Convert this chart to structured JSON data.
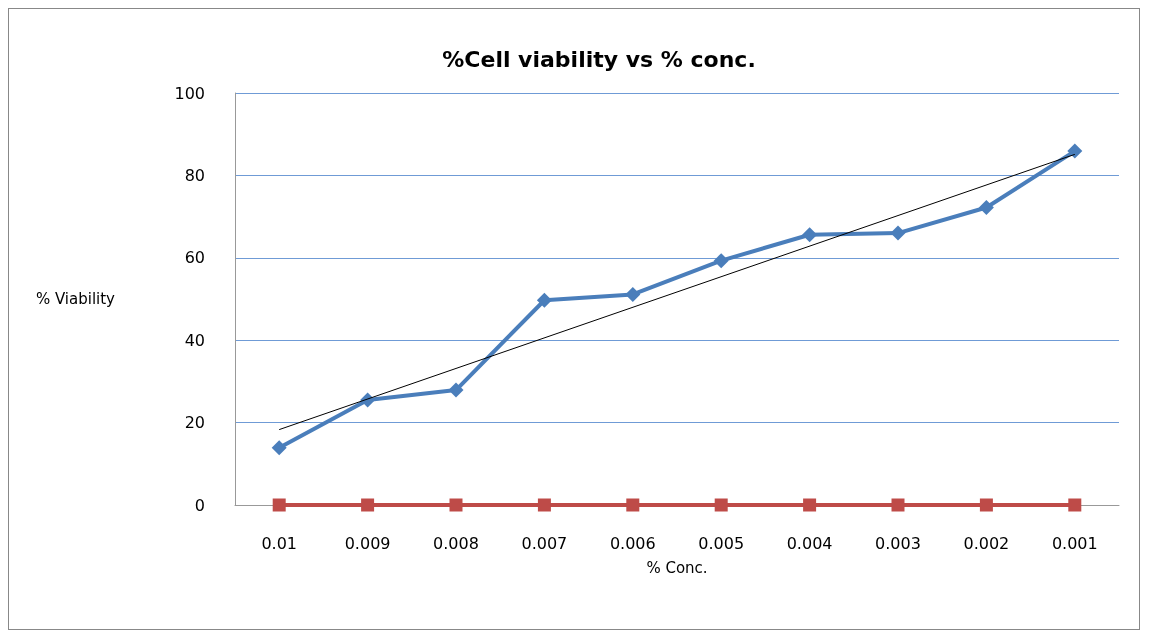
{
  "chart_data": {
    "type": "line",
    "title": "%Cell viability vs % conc.",
    "xlabel": "% Conc.",
    "ylabel": "% Viability",
    "categories": [
      "0.01",
      "0.009",
      "0.008",
      "0.007",
      "0.006",
      "0.005",
      "0.004",
      "0.003",
      "0.002",
      "0.001"
    ],
    "series": [
      {
        "color": "#4a7ebb",
        "marker": "diamond",
        "values": [
          13.9,
          25.5,
          27.9,
          49.7,
          51.1,
          59.3,
          65.6,
          66.0,
          72.2,
          85.9
        ]
      },
      {
        "color": "#be4b48",
        "marker": "square",
        "values": [
          0,
          0,
          0,
          0,
          0,
          0,
          0,
          0,
          0,
          0
        ]
      },
      {
        "type": "line",
        "color": "#000000",
        "marker": "none",
        "x": [
          "0.01",
          "0.001"
        ],
        "values": [
          18.3,
          85.1
        ]
      }
    ],
    "ylim": [
      0,
      100
    ],
    "yticks": [
      0,
      20,
      40,
      60,
      80,
      100
    ],
    "grid": "y"
  }
}
